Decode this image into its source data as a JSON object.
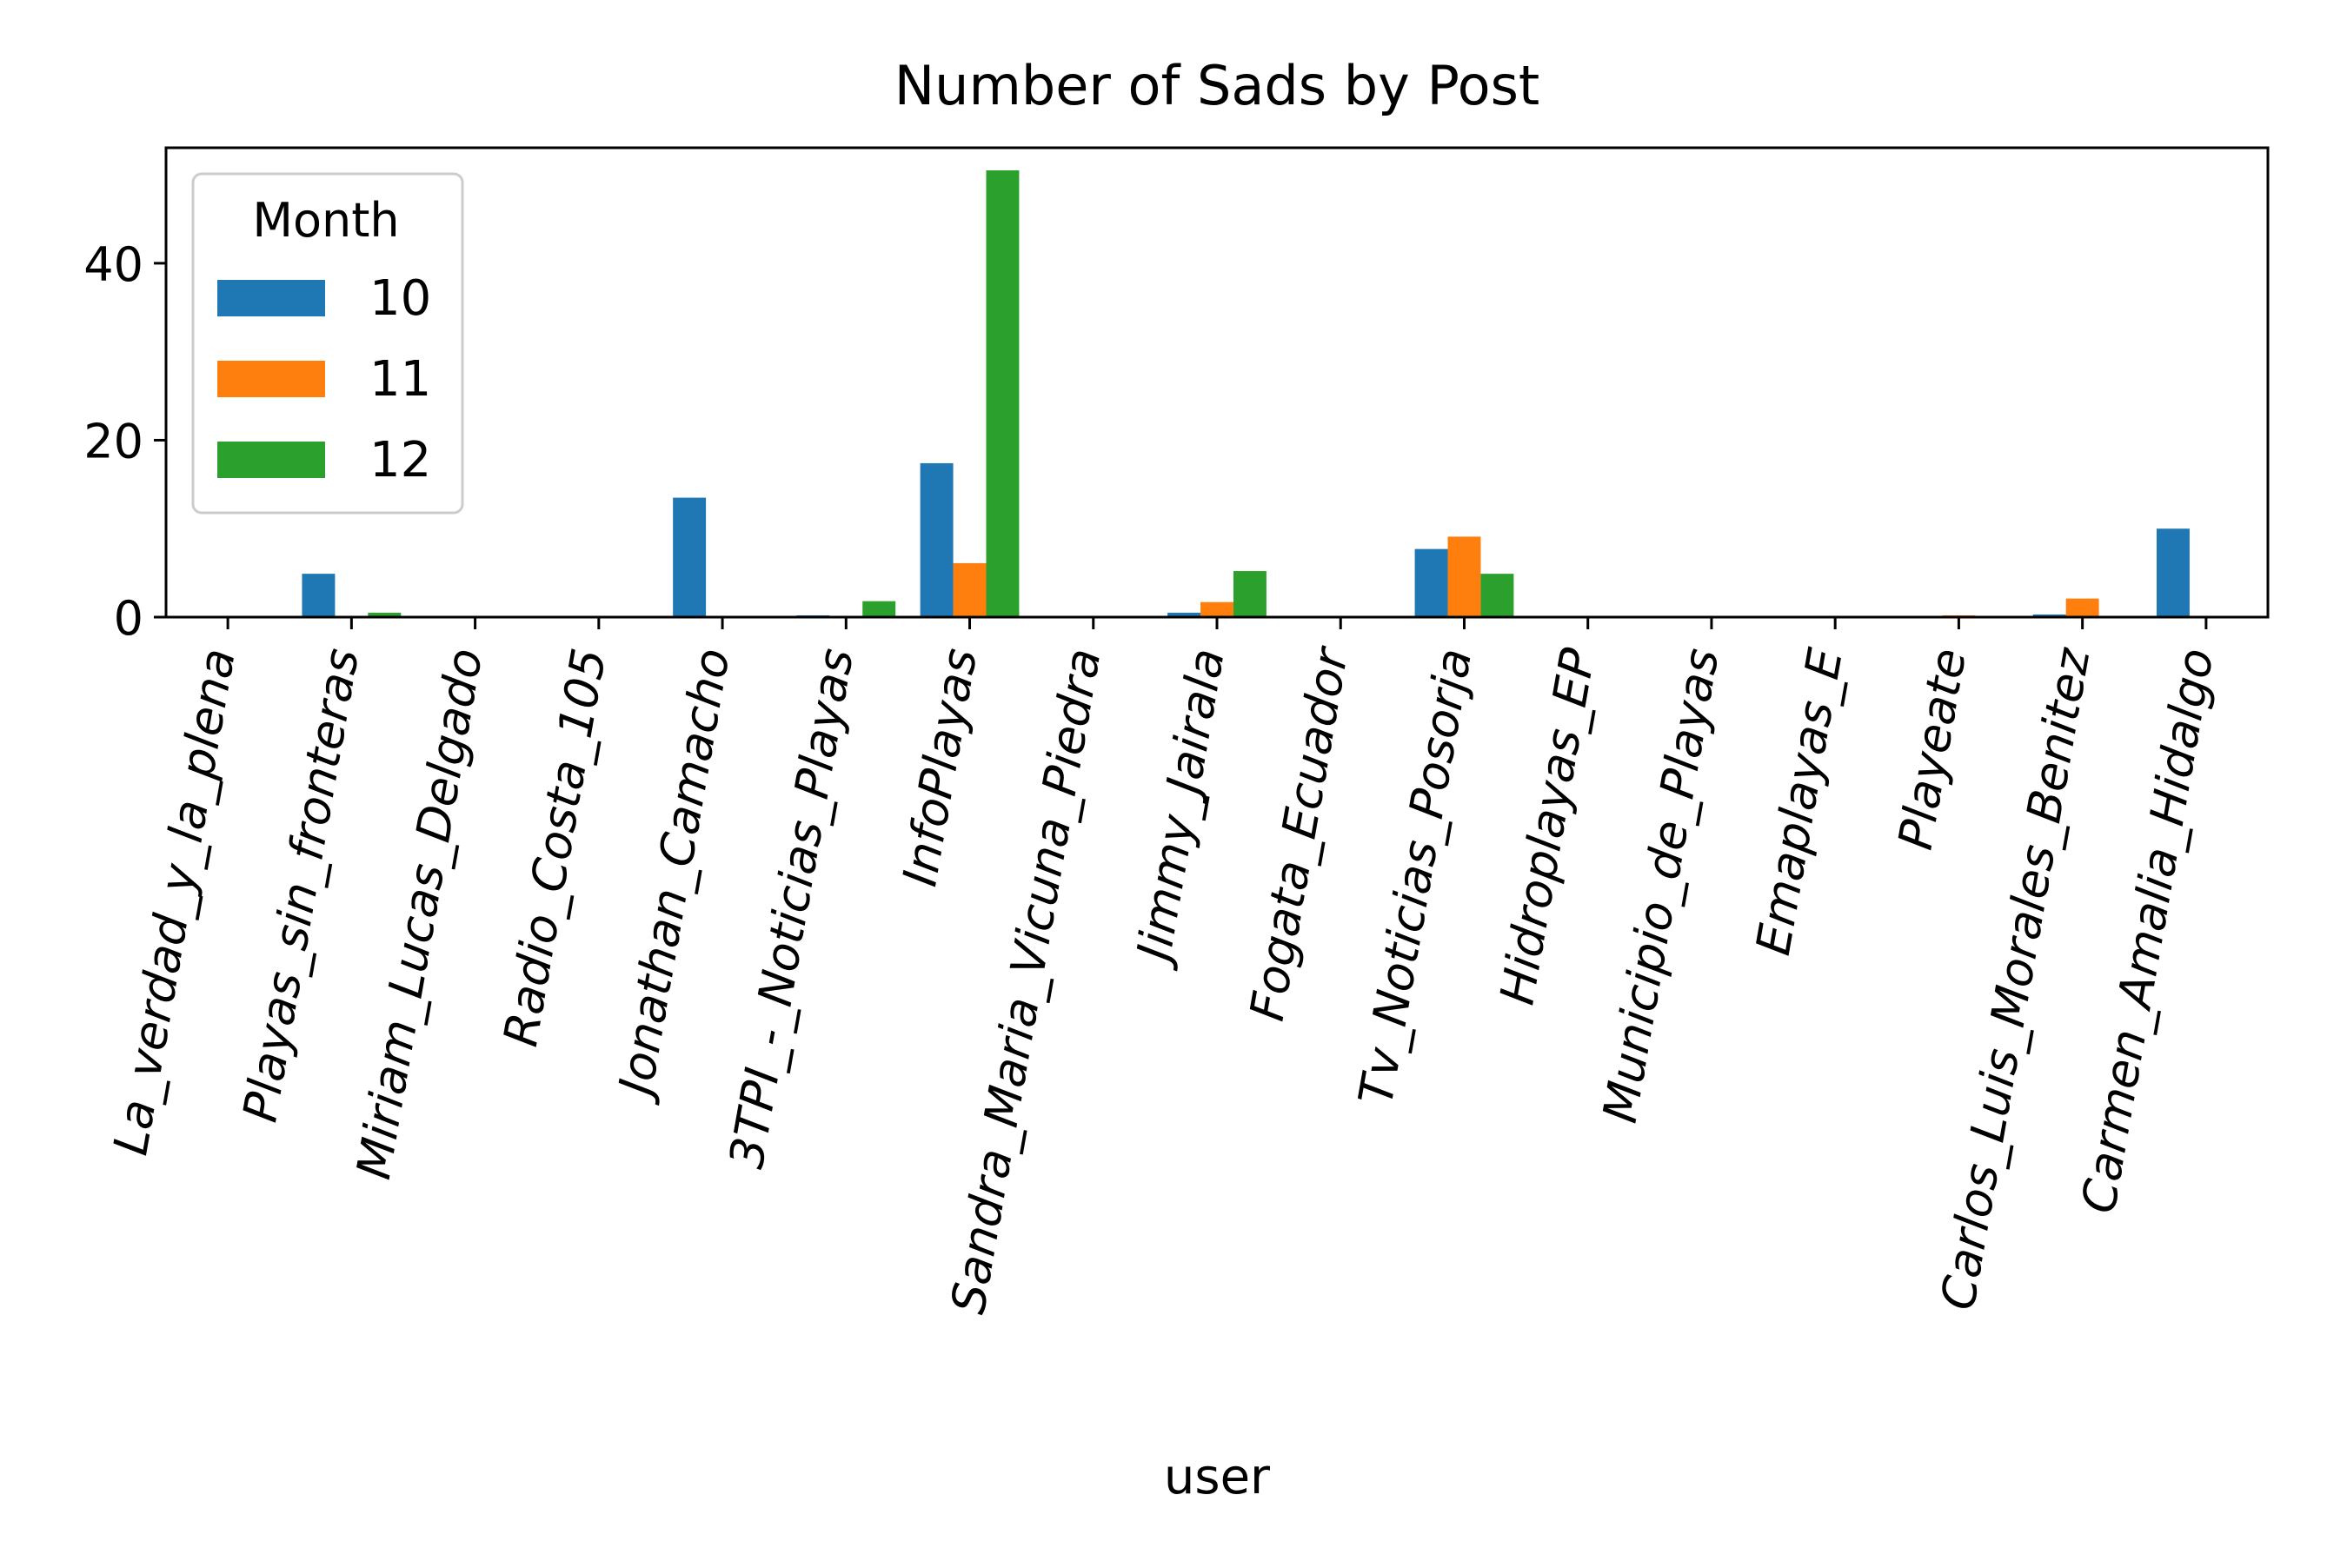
{
  "chart_data": {
    "type": "bar",
    "title": "Number of Sads by Post",
    "xlabel": "user",
    "ylabel": "",
    "ylim": [
      0,
      50.5
    ],
    "yticks": [
      0,
      20,
      40
    ],
    "legend": {
      "title": "Month",
      "placement": "top-left"
    },
    "categories": [
      "La_verdad_y_la_plena",
      "Playas_sin_fronteras",
      "Miriam_Lucas_Delgado",
      "Radio_Costa_105",
      "Jonathan_Camacho",
      "3TPI_-_Noticias_Playas",
      "InfoPlayas",
      "Sandra_Maria_Vicuna_Piedra",
      "Jimmy_Jairala",
      "Fogata_Ecuador",
      "Tv_Noticias_Posorja",
      "Hidroplayas_EP",
      "Municipio_de_Playas",
      "Emaplayas_E",
      "Playeate",
      "Carlos_Luis_Morales_Benitez",
      "Carmen_Amalia_Hidalgo"
    ],
    "series": [
      {
        "name": "10",
        "color": "#1f77b4",
        "values": [
          0,
          4.9,
          0,
          0,
          13.5,
          0.2,
          17.4,
          0,
          0.5,
          0,
          7.7,
          0,
          0,
          0,
          0,
          0.3,
          10.0
        ]
      },
      {
        "name": "11",
        "color": "#ff7f0e",
        "values": [
          0,
          0,
          0,
          0,
          0,
          0,
          6.1,
          0,
          1.7,
          0,
          9.1,
          0,
          0,
          0,
          0.2,
          2.1,
          0
        ]
      },
      {
        "name": "12",
        "color": "#2ca02c",
        "values": [
          0,
          0.5,
          0,
          0,
          0,
          1.8,
          50.5,
          0,
          5.2,
          0,
          4.9,
          0,
          0,
          0,
          0,
          0,
          0
        ]
      }
    ]
  }
}
